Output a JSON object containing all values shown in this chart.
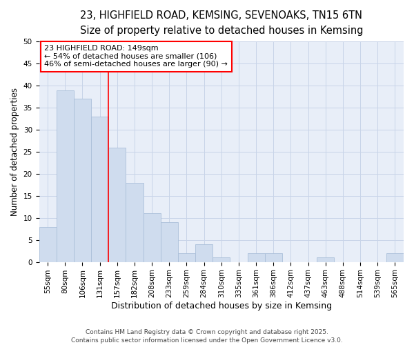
{
  "title": "23, HIGHFIELD ROAD, KEMSING, SEVENOAKS, TN15 6TN",
  "subtitle": "Size of property relative to detached houses in Kemsing",
  "xlabel": "Distribution of detached houses by size in Kemsing",
  "ylabel": "Number of detached properties",
  "categories": [
    "55sqm",
    "80sqm",
    "106sqm",
    "131sqm",
    "157sqm",
    "182sqm",
    "208sqm",
    "233sqm",
    "259sqm",
    "284sqm",
    "310sqm",
    "335sqm",
    "361sqm",
    "386sqm",
    "412sqm",
    "437sqm",
    "463sqm",
    "488sqm",
    "514sqm",
    "539sqm",
    "565sqm"
  ],
  "values": [
    8,
    39,
    37,
    33,
    26,
    18,
    11,
    9,
    2,
    4,
    1,
    0,
    2,
    2,
    0,
    0,
    1,
    0,
    0,
    0,
    2
  ],
  "bar_color": "#cfdcee",
  "bar_edge_color": "#aabfd9",
  "vline_x": 4,
  "vline_color": "red",
  "annotation_line1": "23 HIGHFIELD ROAD: 149sqm",
  "annotation_line2": "← 54% of detached houses are smaller (106)",
  "annotation_line3": "46% of semi-detached houses are larger (90) →",
  "annotation_box_color": "white",
  "annotation_box_edge_color": "red",
  "ylim": [
    0,
    50
  ],
  "yticks": [
    0,
    5,
    10,
    15,
    20,
    25,
    30,
    35,
    40,
    45,
    50
  ],
  "grid_color": "#c8d4e8",
  "plot_bg_color": "#e8eef8",
  "fig_bg_color": "#ffffff",
  "footer": "Contains HM Land Registry data © Crown copyright and database right 2025.\nContains public sector information licensed under the Open Government Licence v3.0.",
  "title_fontsize": 10.5,
  "subtitle_fontsize": 9.5,
  "xlabel_fontsize": 9,
  "ylabel_fontsize": 8.5,
  "tick_fontsize": 7.5,
  "annotation_fontsize": 8,
  "footer_fontsize": 6.5
}
